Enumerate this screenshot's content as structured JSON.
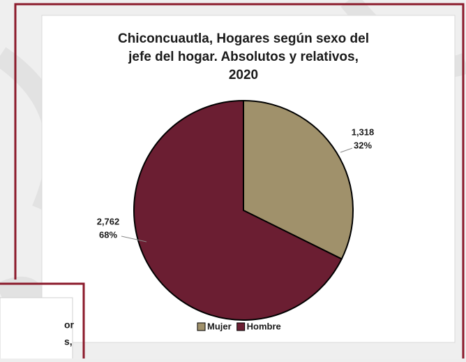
{
  "chart_data": {
    "type": "pie",
    "title": [
      "Chiconcuautla, Hogares según sexo del",
      "jefe del hogar. Absolutos y relativos,",
      "2020"
    ],
    "categories": [
      "Mujer",
      "Hombre"
    ],
    "values": [
      1318,
      2762
    ],
    "value_labels": [
      "1,318",
      "2,762"
    ],
    "percent_labels": [
      "32%",
      "68%"
    ],
    "colors": [
      "#a0916b",
      "#6b1e32"
    ],
    "legend": "bottom"
  },
  "side_panel": {
    "lines": [
      "or",
      "s,"
    ]
  }
}
